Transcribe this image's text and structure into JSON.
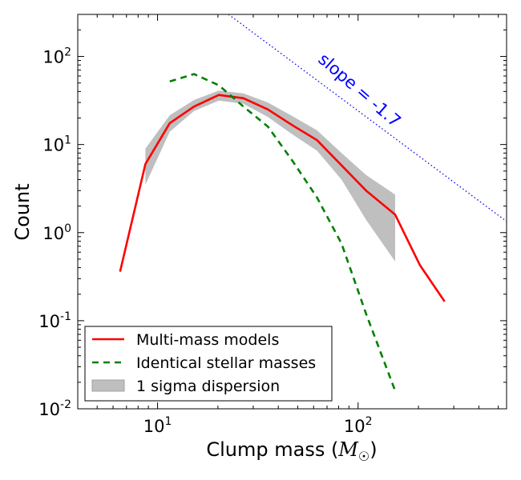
{
  "chart_data": {
    "type": "line",
    "xlabel": "Clump mass (",
    "xlabel_unit": "M",
    "xlabel_close": ")",
    "ylabel": "Count",
    "xscale": "log",
    "yscale": "log",
    "xlim": [
      4,
      550
    ],
    "ylim": [
      0.01,
      300
    ],
    "x_ticks": [
      {
        "value": 10,
        "base": "10",
        "exp": "1"
      },
      {
        "value": 100,
        "base": "10",
        "exp": "2"
      }
    ],
    "y_ticks": [
      {
        "value": 0.01,
        "base": "10",
        "exp": "-2"
      },
      {
        "value": 0.1,
        "base": "10",
        "exp": "-1"
      },
      {
        "value": 1,
        "base": "10",
        "exp": "0"
      },
      {
        "value": 10,
        "base": "10",
        "exp": "1"
      },
      {
        "value": 100,
        "base": "10",
        "exp": "2"
      }
    ],
    "grid": false,
    "legend_position": "lower-left",
    "series": [
      {
        "name": "Multi-mass models",
        "color": "#ff0000",
        "style": "solid",
        "x": [
          6.5,
          8.7,
          11.5,
          15.2,
          20.2,
          26.8,
          35.5,
          47.1,
          62.4,
          82.7,
          109.6,
          153,
          203,
          270
        ],
        "y": [
          0.36,
          6,
          17.5,
          27,
          36.5,
          33.5,
          25,
          16.5,
          11.2,
          5.8,
          3.0,
          1.6,
          0.43,
          0.165
        ]
      },
      {
        "name": "Identical stellar masses",
        "color": "#008000",
        "style": "dashed",
        "x": [
          11.5,
          15.2,
          20.2,
          26.8,
          35.5,
          47.1,
          62.4,
          82.7,
          109.6,
          153
        ],
        "y": [
          52,
          63,
          47,
          27,
          16,
          6.5,
          2.5,
          0.75,
          0.12,
          0.016
        ]
      },
      {
        "name": "1 sigma dispersion",
        "color": "#bfbfbf",
        "type": "band",
        "x": [
          8.7,
          11.5,
          15.2,
          20.2,
          26.8,
          35.5,
          47.1,
          62.4,
          82.7,
          109.6,
          153
        ],
        "upper": [
          9,
          21.5,
          32,
          41,
          38,
          30,
          21,
          14.5,
          8,
          4.5,
          2.7
        ],
        "lower": [
          3.5,
          14,
          24,
          31.5,
          29,
          20.5,
          13,
          8.5,
          4,
          1.4,
          0.47
        ]
      }
    ],
    "reference_line": {
      "label": "slope = -1.7",
      "color": "#0000ff",
      "style": "dotted",
      "slope": -1.7,
      "x": [
        22.6,
        550
      ],
      "y": [
        300,
        1.34
      ]
    }
  }
}
